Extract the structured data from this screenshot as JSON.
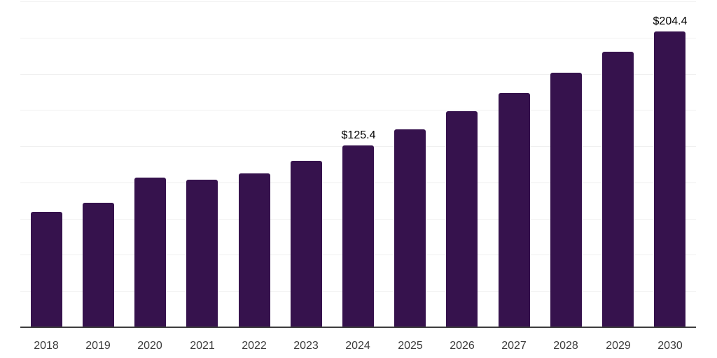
{
  "chart_data": {
    "type": "bar",
    "title": "",
    "xlabel": "",
    "ylabel": "",
    "categories": [
      "2018",
      "2019",
      "2020",
      "2021",
      "2022",
      "2023",
      "2024",
      "2025",
      "2026",
      "2027",
      "2028",
      "2029",
      "2030"
    ],
    "values": [
      79.6,
      86.0,
      103.5,
      102.0,
      106.0,
      114.8,
      125.4,
      136.5,
      149.1,
      161.9,
      175.6,
      190.0,
      204.4
    ],
    "data_labels": [
      {
        "category": "2024",
        "text": "$125.4"
      },
      {
        "category": "2030",
        "text": "$204.4"
      }
    ],
    "ylim": [
      0,
      225
    ],
    "gridline_interval": 25,
    "grid": true,
    "legend": false,
    "bar_color": "#36124d",
    "grid_color": "#f0f0f0",
    "axis_color": "#3d3d3d",
    "tick_label_color": "#3c3c3c",
    "value_label_color": "#000000"
  }
}
